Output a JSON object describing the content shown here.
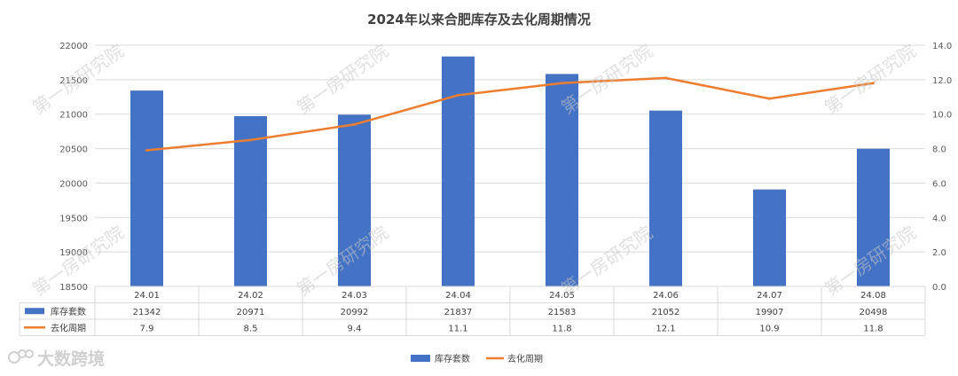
{
  "chart_data": {
    "type": "bar",
    "title": "2024年以来合肥库存及去化周期情况",
    "categories": [
      "24.01",
      "24.02",
      "24.03",
      "24.04",
      "24.05",
      "24.06",
      "24.07",
      "24.08"
    ],
    "series": [
      {
        "name": "库存套数",
        "type": "bar",
        "axis": "left",
        "values": [
          21342,
          20971,
          20992,
          21837,
          21583,
          21052,
          19907,
          20498
        ],
        "color": "#4472c4"
      },
      {
        "name": "去化周期",
        "type": "line",
        "axis": "right",
        "values": [
          7.9,
          8.5,
          9.4,
          11.1,
          11.8,
          12.1,
          10.9,
          11.8
        ],
        "color": "#ed7d31"
      }
    ],
    "y_left": {
      "min": 18500,
      "max": 22000,
      "step": 500,
      "ticks": [
        "22000",
        "21500",
        "21000",
        "20500",
        "20000",
        "19500",
        "19000",
        "18500"
      ]
    },
    "y_right": {
      "min": 0,
      "max": 14,
      "step": 2,
      "ticks": [
        "14.0",
        "12.0",
        "10.0",
        "8.0",
        "6.0",
        "4.0",
        "2.0",
        "0.0"
      ]
    },
    "grid": true,
    "data_table": true,
    "legend": "bottom"
  },
  "watermark": "第一房研究院",
  "brand": "大数跨境"
}
